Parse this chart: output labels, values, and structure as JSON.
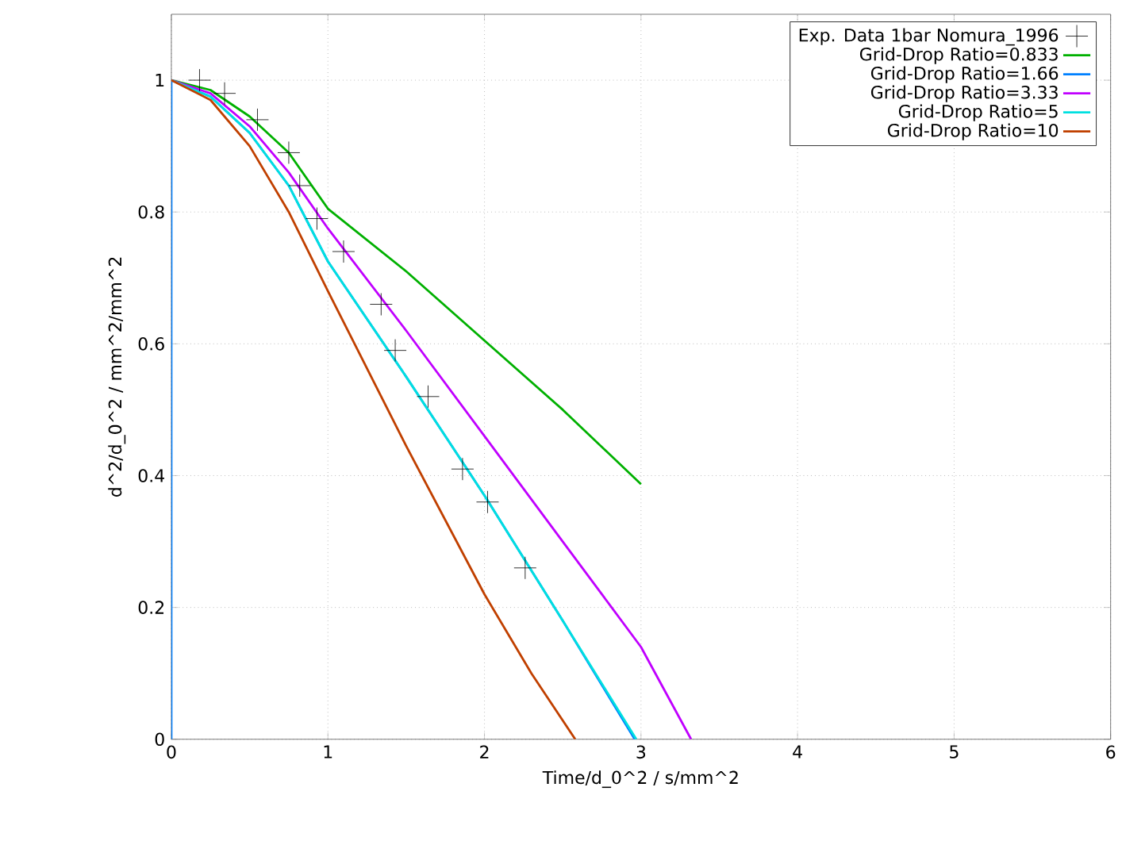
{
  "chart_data": {
    "type": "line",
    "xlabel": "Time/d_0^2 / s/mm^2",
    "ylabel": "d^2/d_0^2 / mm^2/mm^2",
    "xlim": [
      0,
      6
    ],
    "ylim": [
      0,
      1.1
    ],
    "xticks": [
      0,
      1,
      2,
      3,
      4,
      5,
      6
    ],
    "yticks": [
      0,
      0.2,
      0.4,
      0.6,
      0.8,
      1
    ],
    "grid": true,
    "legend": "top right",
    "series": [
      {
        "name": "Exp. Data 1bar Nomura_1996",
        "type": "scatter",
        "marker": "cross",
        "color": "#000000",
        "x": [
          0.18,
          0.34,
          0.55,
          0.75,
          0.82,
          0.93,
          1.1,
          1.34,
          1.43,
          1.64,
          1.86,
          2.02,
          2.26
        ],
        "values": [
          1.0,
          0.98,
          0.94,
          0.89,
          0.84,
          0.79,
          0.74,
          0.66,
          0.59,
          0.52,
          0.41,
          0.36,
          0.26
        ]
      },
      {
        "name": "Grid-Drop Ratio=0.833",
        "color": "#00b000",
        "x": [
          0,
          0.25,
          0.5,
          0.75,
          1,
          1.5,
          2,
          2.5,
          3
        ],
        "values": [
          1,
          0.985,
          0.945,
          0.89,
          0.805,
          0.71,
          0.605,
          0.5,
          0.387
        ]
      },
      {
        "name": "Grid-Drop Ratio=1.66",
        "color": "#0080ff",
        "x": [
          0,
          0,
          0.25,
          0.5,
          0.75,
          1,
          1.5,
          2,
          2.5,
          2.96
        ],
        "values": [
          0,
          1,
          0.975,
          0.92,
          0.84,
          0.725,
          0.55,
          0.37,
          0.18,
          0
        ]
      },
      {
        "name": "Grid-Drop Ratio=3.33",
        "color": "#c000ff",
        "x": [
          0,
          0.25,
          0.5,
          0.75,
          1,
          1.5,
          2,
          2.5,
          3,
          3.32
        ],
        "values": [
          1,
          0.98,
          0.93,
          0.86,
          0.775,
          0.62,
          0.46,
          0.3,
          0.14,
          0
        ]
      },
      {
        "name": "Grid-Drop Ratio=5",
        "color": "#00e0e0",
        "x": [
          0,
          0.25,
          0.5,
          0.75,
          1,
          1.5,
          2,
          2.5,
          2.97
        ],
        "values": [
          1,
          0.975,
          0.92,
          0.84,
          0.725,
          0.55,
          0.37,
          0.18,
          0
        ]
      },
      {
        "name": "Grid-Drop Ratio=10",
        "color": "#c04000",
        "x": [
          0,
          0.25,
          0.5,
          0.75,
          1,
          1.5,
          2,
          2.3,
          2.58
        ],
        "values": [
          1,
          0.97,
          0.9,
          0.8,
          0.68,
          0.445,
          0.22,
          0.1,
          0
        ]
      }
    ]
  }
}
